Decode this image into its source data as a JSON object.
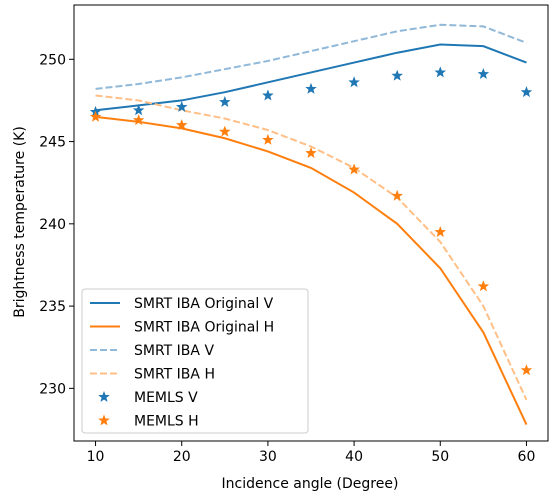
{
  "chart_data": {
    "type": "line",
    "title": "",
    "xlabel": "Incidence angle (Degree)",
    "ylabel": "Brightness temperature (K)",
    "xlim": [
      7.5,
      62.5
    ],
    "ylim": [
      226.8,
      253.3
    ],
    "xticks": [
      10,
      20,
      30,
      40,
      50,
      60
    ],
    "yticks": [
      230,
      235,
      240,
      245,
      250
    ],
    "grid": false,
    "legend_position": "lower-left",
    "x": [
      10,
      15,
      20,
      25,
      30,
      35,
      40,
      45,
      50,
      55,
      60
    ],
    "series": [
      {
        "name": "SMRT IBA Original V",
        "style": "solid",
        "color": "#1f77b4",
        "values": [
          246.9,
          247.2,
          247.5,
          248.0,
          248.6,
          249.2,
          249.8,
          250.4,
          250.9,
          250.8,
          249.8
        ]
      },
      {
        "name": "SMRT IBA Original H",
        "style": "solid",
        "color": "#ff7f0e",
        "values": [
          246.5,
          246.2,
          245.8,
          245.2,
          244.4,
          243.4,
          241.9,
          240.0,
          237.3,
          233.4,
          227.8
        ]
      },
      {
        "name": "SMRT IBA V",
        "style": "dashed",
        "color": "#90b8d8",
        "values": [
          248.2,
          248.5,
          248.9,
          249.4,
          249.9,
          250.5,
          251.1,
          251.7,
          252.1,
          252.0,
          251.0
        ]
      },
      {
        "name": "SMRT IBA H",
        "style": "dashed",
        "color": "#ffbf86",
        "values": [
          247.8,
          247.5,
          246.9,
          246.4,
          245.7,
          244.7,
          243.4,
          241.6,
          238.9,
          235.0,
          229.3
        ]
      },
      {
        "name": "MEMLS V",
        "style": "marker",
        "color": "#1f77b4",
        "values": [
          246.8,
          246.9,
          247.1,
          247.4,
          247.8,
          248.2,
          248.6,
          249.0,
          249.2,
          249.1,
          248.0
        ]
      },
      {
        "name": "MEMLS H",
        "style": "marker",
        "color": "#ff7f0e",
        "values": [
          246.5,
          246.3,
          246.0,
          245.6,
          245.1,
          244.3,
          243.3,
          241.7,
          239.5,
          236.2,
          231.1
        ]
      }
    ]
  }
}
